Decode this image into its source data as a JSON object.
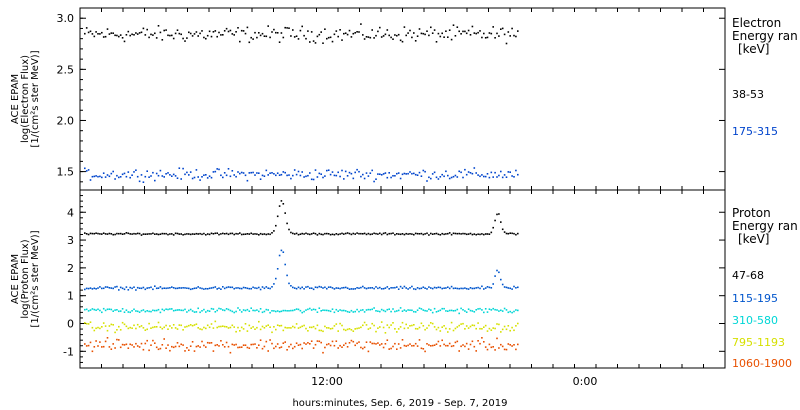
{
  "x_axis": {
    "ticks": [
      "12:00",
      "0:00"
    ],
    "label": "hours:minutes, Sep.  6, 2019 - Sep.  7, 2019"
  },
  "chart_data": [
    {
      "type": "scatter",
      "ylabel": [
        "ACE EPAM",
        "log(Electron Flux)",
        "[1/(cm²s ster MeV)]"
      ],
      "ylim": [
        1.32,
        3.1
      ],
      "yticks": [
        1.5,
        2.0,
        2.5,
        3.0
      ],
      "ytick_labels": [
        "1.5",
        "2.0",
        "2.5",
        "3.0"
      ],
      "legend_title": [
        "Electron",
        "Energy ran",
        "[keV]"
      ],
      "series": [
        {
          "name": "38-53",
          "color": "#000000",
          "level": 2.85,
          "noise": 0.07
        },
        {
          "name": "175-315",
          "color": "#0044cc",
          "level": 1.48,
          "noise": 0.05
        }
      ]
    },
    {
      "type": "scatter",
      "ylabel": [
        "ACE EPAM",
        "log(Proton Flux)",
        "[1/(cm²s ster MeV)]"
      ],
      "ylim": [
        -1.6,
        4.8
      ],
      "yticks": [
        -1,
        0,
        1,
        2,
        3,
        4
      ],
      "ytick_labels": [
        "-1",
        "0",
        "1",
        "2",
        "3",
        "4"
      ],
      "legend_title": [
        "Proton",
        "Energy ran",
        "[keV]"
      ],
      "series": [
        {
          "name": "47-68",
          "color": "#000000",
          "level": 3.25,
          "noise": 0.03
        },
        {
          "name": "115-195",
          "color": "#0055cc",
          "level": 1.3,
          "noise": 0.05
        },
        {
          "name": "310-580",
          "color": "#00d6d6",
          "level": 0.5,
          "noise": 0.08
        },
        {
          "name": "795-1193",
          "color": "#d6e000",
          "level": -0.1,
          "noise": 0.15
        },
        {
          "name": "1060-1900",
          "color": "#e85000",
          "level": -0.75,
          "noise": 0.2
        }
      ]
    }
  ]
}
